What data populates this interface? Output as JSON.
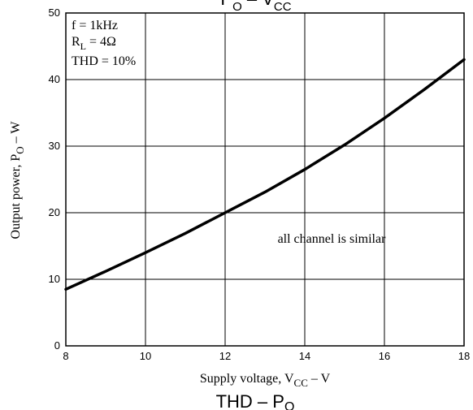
{
  "chart_data": {
    "type": "line",
    "title_parts": {
      "main": "P",
      "main_sub": "O",
      "dash": " – ",
      "right": "V",
      "right_sub": "CC"
    },
    "bottom_title_parts": {
      "main": "THD",
      "dash": " – ",
      "right": "P",
      "right_sub": "O"
    },
    "xlabel_parts": {
      "main": "Supply voltage, V",
      "sub": "CC",
      "tail": "  –  V"
    },
    "ylabel_parts": {
      "main": "Output power, P",
      "sub": "O",
      "tail": "  –  W"
    },
    "xlim": [
      8,
      18
    ],
    "ylim": [
      0,
      50
    ],
    "x_ticks": [
      "8",
      "10",
      "12",
      "14",
      "16",
      "18"
    ],
    "y_ticks": [
      "0",
      "10",
      "20",
      "30",
      "40",
      "50"
    ],
    "grid": true,
    "conditions": {
      "line1": "f = 1kHz",
      "line2_main": "R",
      "line2_sub": "L",
      "line2_tail": " = 4Ω",
      "line3": "THD = 10%"
    },
    "annotation": "all channel is similar",
    "series": [
      {
        "x": [
          8,
          9,
          10,
          11,
          12,
          13,
          14,
          15,
          16,
          17,
          18
        ],
        "y": [
          8.5,
          11.2,
          14.0,
          16.9,
          20.0,
          23.1,
          26.5,
          30.2,
          34.2,
          38.5,
          43.0
        ]
      }
    ]
  }
}
